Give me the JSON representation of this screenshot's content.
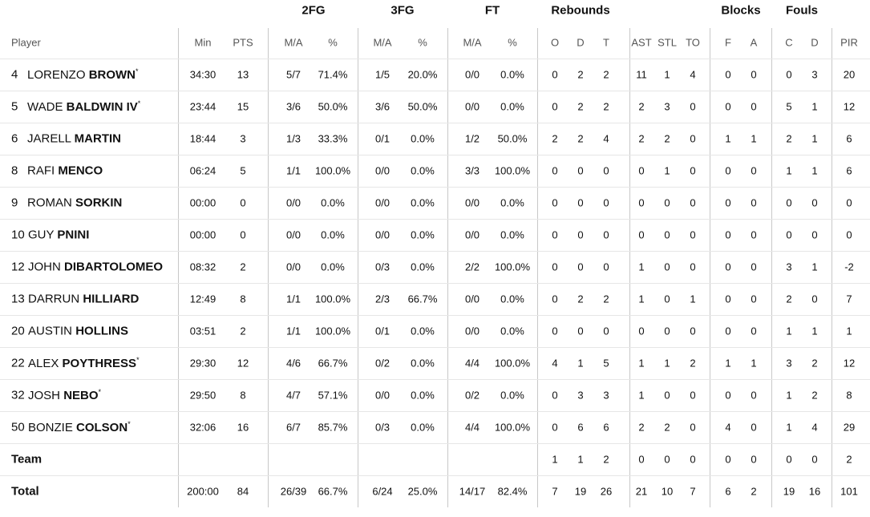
{
  "table": {
    "groups": [
      "2FG",
      "3FG",
      "FT",
      "Rebounds",
      "Blocks",
      "Fouls"
    ],
    "player_header": "Player",
    "columns": [
      "Min",
      "PTS",
      "M/A",
      "%",
      "M/A",
      "%",
      "M/A",
      "%",
      "O",
      "D",
      "T",
      "AST",
      "STL",
      "TO",
      "F",
      "A",
      "C",
      "D",
      "PIR"
    ],
    "rows": [
      {
        "number": "4",
        "first": "LORENZO",
        "last": "BROWN",
        "starter": "*",
        "stats": [
          "34:30",
          "13",
          "5/7",
          "71.4%",
          "1/5",
          "20.0%",
          "0/0",
          "0.0%",
          "0",
          "2",
          "2",
          "11",
          "1",
          "4",
          "0",
          "0",
          "0",
          "3",
          "20"
        ]
      },
      {
        "number": "5",
        "first": "WADE",
        "last": "BALDWIN IV",
        "starter": "*",
        "stats": [
          "23:44",
          "15",
          "3/6",
          "50.0%",
          "3/6",
          "50.0%",
          "0/0",
          "0.0%",
          "0",
          "2",
          "2",
          "2",
          "3",
          "0",
          "0",
          "0",
          "5",
          "1",
          "12"
        ]
      },
      {
        "number": "6",
        "first": "JARELL",
        "last": "MARTIN",
        "stats": [
          "18:44",
          "3",
          "1/3",
          "33.3%",
          "0/1",
          "0.0%",
          "1/2",
          "50.0%",
          "2",
          "2",
          "4",
          "2",
          "2",
          "0",
          "1",
          "1",
          "2",
          "1",
          "6"
        ]
      },
      {
        "number": "8",
        "first": "RAFI",
        "last": "MENCO",
        "stats": [
          "06:24",
          "5",
          "1/1",
          "100.0%",
          "0/0",
          "0.0%",
          "3/3",
          "100.0%",
          "0",
          "0",
          "0",
          "0",
          "1",
          "0",
          "0",
          "0",
          "1",
          "1",
          "6"
        ]
      },
      {
        "number": "9",
        "first": "ROMAN",
        "last": "SORKIN",
        "stats": [
          "00:00",
          "0",
          "0/0",
          "0.0%",
          "0/0",
          "0.0%",
          "0/0",
          "0.0%",
          "0",
          "0",
          "0",
          "0",
          "0",
          "0",
          "0",
          "0",
          "0",
          "0",
          "0"
        ]
      },
      {
        "number": "10",
        "first": "GUY",
        "last": "PNINI",
        "stats": [
          "00:00",
          "0",
          "0/0",
          "0.0%",
          "0/0",
          "0.0%",
          "0/0",
          "0.0%",
          "0",
          "0",
          "0",
          "0",
          "0",
          "0",
          "0",
          "0",
          "0",
          "0",
          "0"
        ]
      },
      {
        "number": "12",
        "first": "JOHN",
        "last": "DIBARTOLOMEO",
        "stats": [
          "08:32",
          "2",
          "0/0",
          "0.0%",
          "0/3",
          "0.0%",
          "2/2",
          "100.0%",
          "0",
          "0",
          "0",
          "1",
          "0",
          "0",
          "0",
          "0",
          "3",
          "1",
          "-2"
        ]
      },
      {
        "number": "13",
        "first": "DARRUN",
        "last": "HILLIARD",
        "stats": [
          "12:49",
          "8",
          "1/1",
          "100.0%",
          "2/3",
          "66.7%",
          "0/0",
          "0.0%",
          "0",
          "2",
          "2",
          "1",
          "0",
          "1",
          "0",
          "0",
          "2",
          "0",
          "7"
        ]
      },
      {
        "number": "20",
        "first": "AUSTIN",
        "last": "HOLLINS",
        "stats": [
          "03:51",
          "2",
          "1/1",
          "100.0%",
          "0/1",
          "0.0%",
          "0/0",
          "0.0%",
          "0",
          "0",
          "0",
          "0",
          "0",
          "0",
          "0",
          "0",
          "1",
          "1",
          "1"
        ]
      },
      {
        "number": "22",
        "first": "ALEX",
        "last": "POYTHRESS",
        "starter": "*",
        "stats": [
          "29:30",
          "12",
          "4/6",
          "66.7%",
          "0/2",
          "0.0%",
          "4/4",
          "100.0%",
          "4",
          "1",
          "5",
          "1",
          "1",
          "2",
          "1",
          "1",
          "3",
          "2",
          "12"
        ]
      },
      {
        "number": "32",
        "first": "JOSH",
        "last": "NEBO",
        "starter": "*",
        "stats": [
          "29:50",
          "8",
          "4/7",
          "57.1%",
          "0/0",
          "0.0%",
          "0/2",
          "0.0%",
          "0",
          "3",
          "3",
          "1",
          "0",
          "0",
          "0",
          "0",
          "1",
          "2",
          "8"
        ]
      },
      {
        "number": "50",
        "first": "BONZIE",
        "last": "COLSON",
        "starter": "*",
        "stats": [
          "32:06",
          "16",
          "6/7",
          "85.7%",
          "0/3",
          "0.0%",
          "4/4",
          "100.0%",
          "0",
          "6",
          "6",
          "2",
          "2",
          "0",
          "4",
          "0",
          "1",
          "4",
          "29"
        ]
      },
      {
        "label": "Team",
        "stats": [
          null,
          null,
          null,
          null,
          null,
          null,
          null,
          null,
          "1",
          "1",
          "2",
          "0",
          "0",
          "0",
          "0",
          "0",
          "0",
          "0",
          "2"
        ]
      },
      {
        "label": "Total",
        "stats": [
          "200:00",
          "84",
          "26/39",
          "66.7%",
          "6/24",
          "25.0%",
          "14/17",
          "82.4%",
          "7",
          "19",
          "26",
          "21",
          "10",
          "7",
          "6",
          "2",
          "19",
          "16",
          "101"
        ]
      }
    ]
  }
}
